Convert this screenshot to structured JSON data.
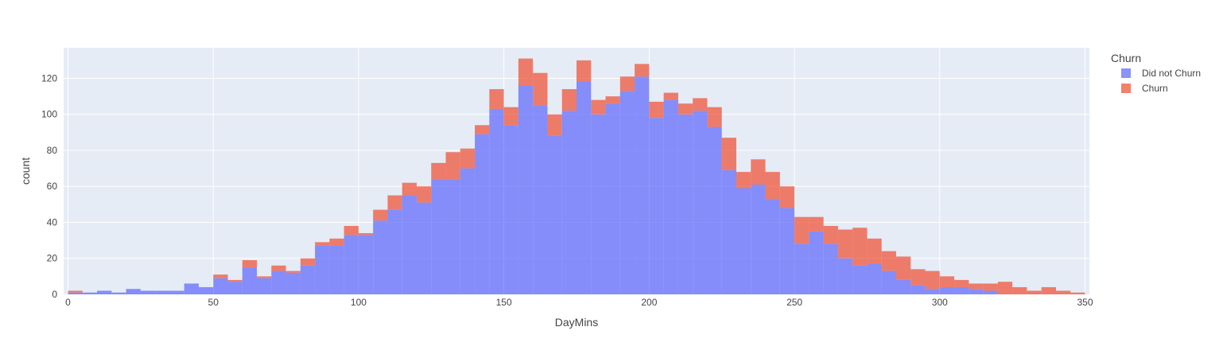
{
  "chart_data": {
    "type": "bar",
    "barmode": "stacked-histogram",
    "xlabel": "DayMins",
    "ylabel": "count",
    "xlim": [
      -1.5,
      351.5
    ],
    "ylim": [
      0,
      137
    ],
    "bin_start": 0,
    "bin_width": 5,
    "x_ticks": [
      0,
      50,
      100,
      150,
      200,
      250,
      300,
      350
    ],
    "y_ticks": [
      0,
      20,
      40,
      60,
      80,
      100,
      120
    ],
    "grid": true,
    "legend": {
      "title": "Churn",
      "placement": "top-right"
    },
    "series": [
      {
        "name": "Did not Churn",
        "color": "#636efa",
        "values": [
          1,
          1,
          2,
          1,
          3,
          2,
          2,
          2,
          6,
          4,
          9,
          7,
          15,
          9,
          13,
          12,
          16,
          27,
          27,
          33,
          33,
          41,
          47,
          55,
          51,
          64,
          64,
          70,
          89,
          103,
          94,
          116,
          105,
          88,
          102,
          118,
          100,
          106,
          113,
          121,
          98,
          108,
          100,
          102,
          93,
          69,
          59,
          61,
          53,
          48,
          28,
          35,
          28,
          20,
          16,
          17,
          13,
          8,
          5,
          3,
          4,
          4,
          3,
          2,
          0,
          0,
          0,
          0,
          0,
          0
        ]
      },
      {
        "name": "Churn",
        "color": "#ef553b",
        "values": [
          1,
          0,
          0,
          0,
          0,
          0,
          0,
          0,
          0,
          0,
          2,
          1,
          4,
          1,
          3,
          1,
          4,
          2,
          4,
          5,
          1,
          6,
          8,
          7,
          9,
          9,
          15,
          11,
          5,
          11,
          10,
          15,
          18,
          12,
          12,
          12,
          8,
          4,
          8,
          7,
          9,
          4,
          6,
          7,
          11,
          18,
          9,
          14,
          15,
          12,
          15,
          8,
          10,
          16,
          21,
          14,
          11,
          13,
          9,
          10,
          6,
          4,
          3,
          4,
          7,
          4,
          2,
          4,
          2,
          1
        ]
      }
    ]
  }
}
